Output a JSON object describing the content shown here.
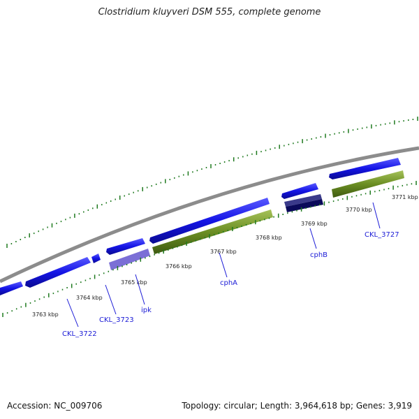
{
  "title": "Clostridium kluyveri DSM 555, complete genome",
  "footer": {
    "accession": "Accession: NC_009706",
    "summary": "Topology: circular; Length: 3,964,618 bp; Genes: 3,919"
  },
  "kbp_labels": [
    "3763 kbp",
    "3764 kbp",
    "3765 kbp",
    "3766 kbp",
    "3767 kbp",
    "3768 kbp",
    "3769 kbp",
    "3770 kbp",
    "3771 kbp"
  ],
  "gene_labels": [
    "CKL_3722",
    "CKL_3723",
    "ipk",
    "cphA",
    "cphB",
    "CKL_3727"
  ],
  "colors": {
    "backbone": "#8c8c8c",
    "cds_forward": "#1414e6",
    "cds_light": "#7b6fd6",
    "cds_dark": "#1c1c6e",
    "gc_bar": "#6b8e23",
    "tick": "#1f7a1f",
    "label": "#1a1ad6"
  }
}
